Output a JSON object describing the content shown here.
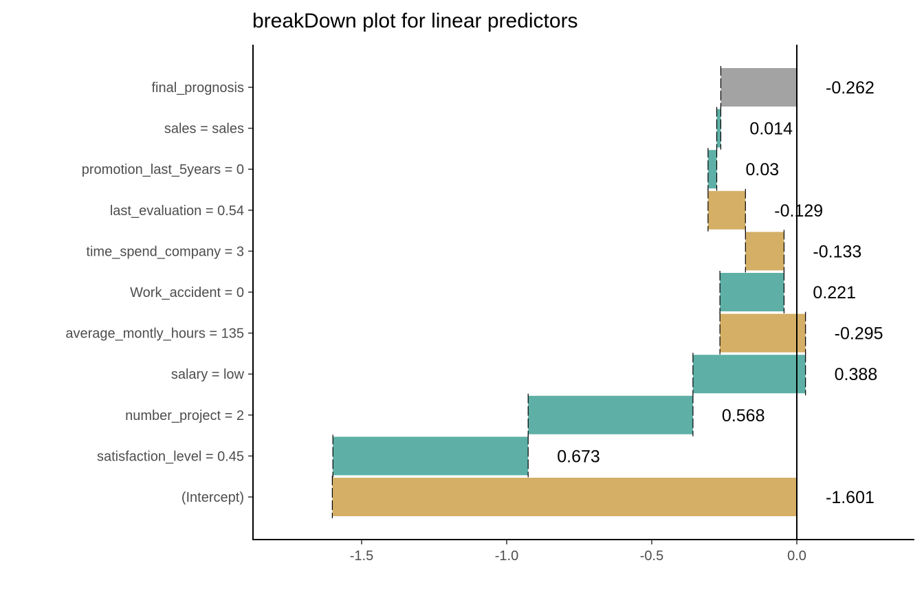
{
  "chart_data": {
    "type": "waterfall",
    "title": "breakDown plot for linear predictors",
    "xlabel": "",
    "ylabel": "",
    "xlim": [
      -1.88,
      0.4
    ],
    "xticks": [
      -1.5,
      -1.0,
      -0.5,
      0.0
    ],
    "xtick_labels": [
      "-1.5",
      "-1.0",
      "-0.5",
      "0.0"
    ],
    "grid": false,
    "legend": "none",
    "colors": {
      "positive": "#5eb0a6",
      "negative": "#d4af65",
      "final": "#a3a3a3",
      "zero_line": "#000000"
    },
    "rows": [
      {
        "label": "final_prognosis",
        "start": -0.262,
        "end": 0.0,
        "value_label": "-0.262",
        "kind": "final"
      },
      {
        "label": "sales = sales",
        "start": -0.276,
        "end": -0.262,
        "value_label": "0.014",
        "kind": "positive"
      },
      {
        "label": "promotion_last_5years = 0",
        "start": -0.306,
        "end": -0.276,
        "value_label": "0.03",
        "kind": "positive"
      },
      {
        "label": "last_evaluation = 0.54",
        "start": -0.177,
        "end": -0.306,
        "value_label": "-0.129",
        "kind": "negative"
      },
      {
        "label": "time_spend_company = 3",
        "start": -0.044,
        "end": -0.177,
        "value_label": "-0.133",
        "kind": "negative"
      },
      {
        "label": "Work_accident = 0",
        "start": -0.265,
        "end": -0.044,
        "value_label": "0.221",
        "kind": "positive"
      },
      {
        "label": "average_montly_hours = 135",
        "start": 0.03,
        "end": -0.265,
        "value_label": "-0.295",
        "kind": "negative"
      },
      {
        "label": "salary = low",
        "start": -0.358,
        "end": 0.03,
        "value_label": "0.388",
        "kind": "positive"
      },
      {
        "label": "number_project = 2",
        "start": -0.926,
        "end": -0.358,
        "value_label": "0.568",
        "kind": "positive"
      },
      {
        "label": "satisfaction_level = 0.45",
        "start": -1.599,
        "end": -0.926,
        "value_label": "0.673",
        "kind": "positive"
      },
      {
        "label": "(Intercept)",
        "start": 0.0,
        "end": -1.601,
        "value_label": "-1.601",
        "kind": "negative"
      }
    ]
  }
}
